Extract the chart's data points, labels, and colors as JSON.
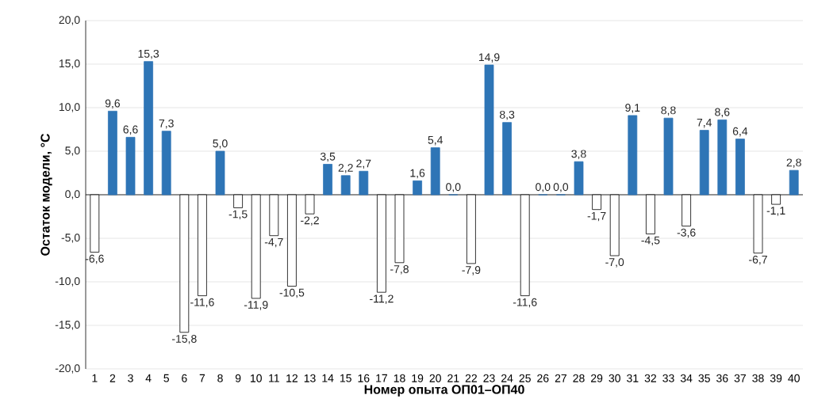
{
  "chart_data": {
    "type": "bar",
    "xlabel": "Номер опыта ОП01–ОП40",
    "ylabel": "Остаток модели, °C",
    "categories": [
      "1",
      "2",
      "3",
      "4",
      "5",
      "6",
      "7",
      "8",
      "9",
      "10",
      "11",
      "12",
      "13",
      "14",
      "15",
      "16",
      "17",
      "18",
      "19",
      "20",
      "21",
      "22",
      "23",
      "24",
      "25",
      "26",
      "27",
      "28",
      "29",
      "30",
      "31",
      "32",
      "33",
      "34",
      "35",
      "36",
      "37",
      "38",
      "39",
      "40"
    ],
    "values": [
      -6.6,
      9.6,
      6.6,
      15.3,
      7.3,
      -15.8,
      -11.6,
      5.0,
      -1.5,
      -11.9,
      -4.7,
      -10.5,
      -2.2,
      3.5,
      2.2,
      2.7,
      -11.2,
      -7.8,
      1.6,
      5.4,
      0.0,
      -7.9,
      14.9,
      8.3,
      -11.6,
      0.0,
      0.0,
      3.8,
      -1.7,
      -7.0,
      9.1,
      -4.5,
      8.8,
      -3.6,
      7.4,
      8.6,
      6.4,
      -6.7,
      -1.1,
      2.8
    ],
    "value_labels": [
      "-6,6",
      "9,6",
      "6,6",
      "15,3",
      "7,3",
      "-15,8",
      "-11,6",
      "5,0",
      "-1,5",
      "-11,9",
      "-4,7",
      "-10,5",
      "-2,2",
      "3,5",
      "2,2",
      "2,7",
      "-11,2",
      "-7,8",
      "1,6",
      "5,4",
      "0,0",
      "-7,9",
      "14,9",
      "8,3",
      "-11,6",
      "0,0",
      "0,0",
      "3,8",
      "-1,7",
      "-7,0",
      "9,1",
      "-4,5",
      "8,8",
      "-3,6",
      "7,4",
      "8,6",
      "6,4",
      "-6,7",
      "-1,1",
      "2,8"
    ],
    "colors": [
      "#ffffff",
      "#2e75b6",
      "#2e75b6",
      "#2e75b6",
      "#2e75b6",
      "#ffffff",
      "#ffffff",
      "#2e75b6",
      "#ffffff",
      "#ffffff",
      "#ffffff",
      "#ffffff",
      "#ffffff",
      "#2e75b6",
      "#2e75b6",
      "#2e75b6",
      "#ffffff",
      "#ffffff",
      "#2e75b6",
      "#2e75b6",
      "#2e75b6",
      "#ffffff",
      "#2e75b6",
      "#2e75b6",
      "#ffffff",
      "#2e75b6",
      "#2e75b6",
      "#2e75b6",
      "#ffffff",
      "#ffffff",
      "#2e75b6",
      "#ffffff",
      "#2e75b6",
      "#ffffff",
      "#2e75b6",
      "#2e75b6",
      "#2e75b6",
      "#ffffff",
      "#ffffff",
      "#2e75b6"
    ],
    "ylim": [
      -20,
      20
    ],
    "yticks": [
      {
        "value": -20,
        "label": "-20,0"
      },
      {
        "value": -15,
        "label": "-15,0"
      },
      {
        "value": -10,
        "label": "-10,0"
      },
      {
        "value": -5,
        "label": "-5,0"
      },
      {
        "value": 0,
        "label": "0,0"
      },
      {
        "value": 5,
        "label": "5,0"
      },
      {
        "value": 10,
        "label": "10,0"
      },
      {
        "value": 15,
        "label": "15,0"
      },
      {
        "value": 20,
        "label": "20,0"
      }
    ],
    "grid": "y"
  }
}
